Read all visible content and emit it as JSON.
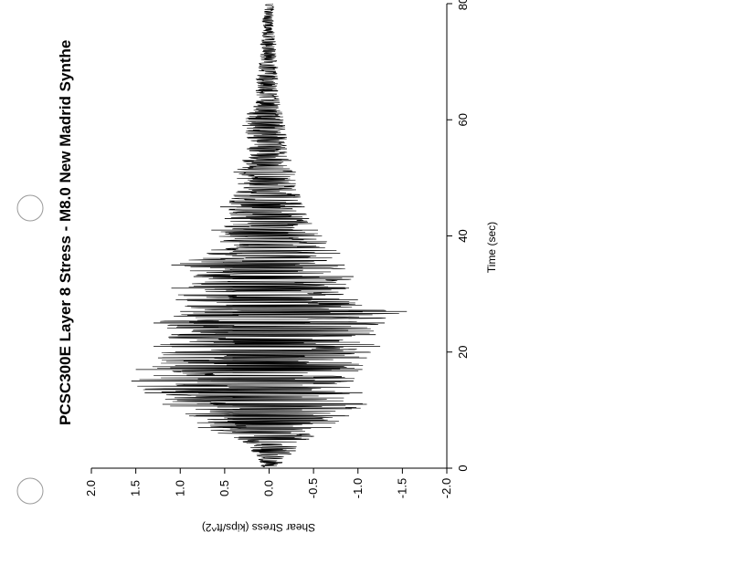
{
  "chart_data": {
    "type": "line",
    "orientation": "rotated-90",
    "title": "PCSC300E Layer 8 Stress - M8.0 New Madrid Synthe",
    "xlabel": "Time (sec)",
    "ylabel": "Shear Stress (kips/ft^2)",
    "xlim": [
      0,
      80
    ],
    "ylim": [
      -2.0,
      2.0
    ],
    "x_ticks": [
      "0",
      "20",
      "40",
      "60",
      "80"
    ],
    "y_ticks": [
      "2.0",
      "1.5",
      "1.0",
      "0.5",
      "0.0",
      "-0.5",
      "-1.0",
      "-1.5",
      "-2.0"
    ],
    "grid": false,
    "legend": "none",
    "series": [
      {
        "color": "#000000",
        "x": [
          1,
          3,
          5,
          7,
          9,
          11,
          13,
          15,
          17,
          19,
          21,
          23,
          25,
          27,
          29,
          31,
          33,
          35,
          37,
          39,
          41,
          43,
          45,
          47,
          49,
          51,
          53,
          55,
          57,
          59,
          61,
          63,
          65,
          67,
          69,
          71,
          73,
          75,
          77,
          79
        ],
        "upper": [
          0.1,
          0.2,
          0.35,
          0.8,
          0.9,
          1.2,
          1.4,
          1.55,
          1.5,
          1.25,
          1.3,
          1.1,
          1.3,
          1.0,
          1.05,
          1.1,
          0.85,
          1.1,
          0.7,
          0.55,
          0.65,
          0.5,
          0.55,
          0.4,
          0.35,
          0.4,
          0.3,
          0.25,
          0.25,
          0.3,
          0.25,
          0.15,
          0.15,
          0.15,
          0.12,
          0.1,
          0.1,
          0.08,
          0.08,
          0.05
        ],
        "lower": [
          -0.15,
          -0.3,
          -0.45,
          -0.7,
          -0.9,
          -1.1,
          -1.05,
          -0.95,
          -1.05,
          -1.1,
          -1.25,
          -1.2,
          -1.3,
          -1.55,
          -1.0,
          -0.9,
          -0.95,
          -0.85,
          -0.8,
          -0.65,
          -0.55,
          -0.45,
          -0.4,
          -0.35,
          -0.3,
          -0.3,
          -0.25,
          -0.2,
          -0.2,
          -0.18,
          -0.15,
          -0.12,
          -0.1,
          -0.1,
          -0.1,
          -0.08,
          -0.08,
          -0.06,
          -0.05,
          -0.05
        ]
      }
    ]
  }
}
